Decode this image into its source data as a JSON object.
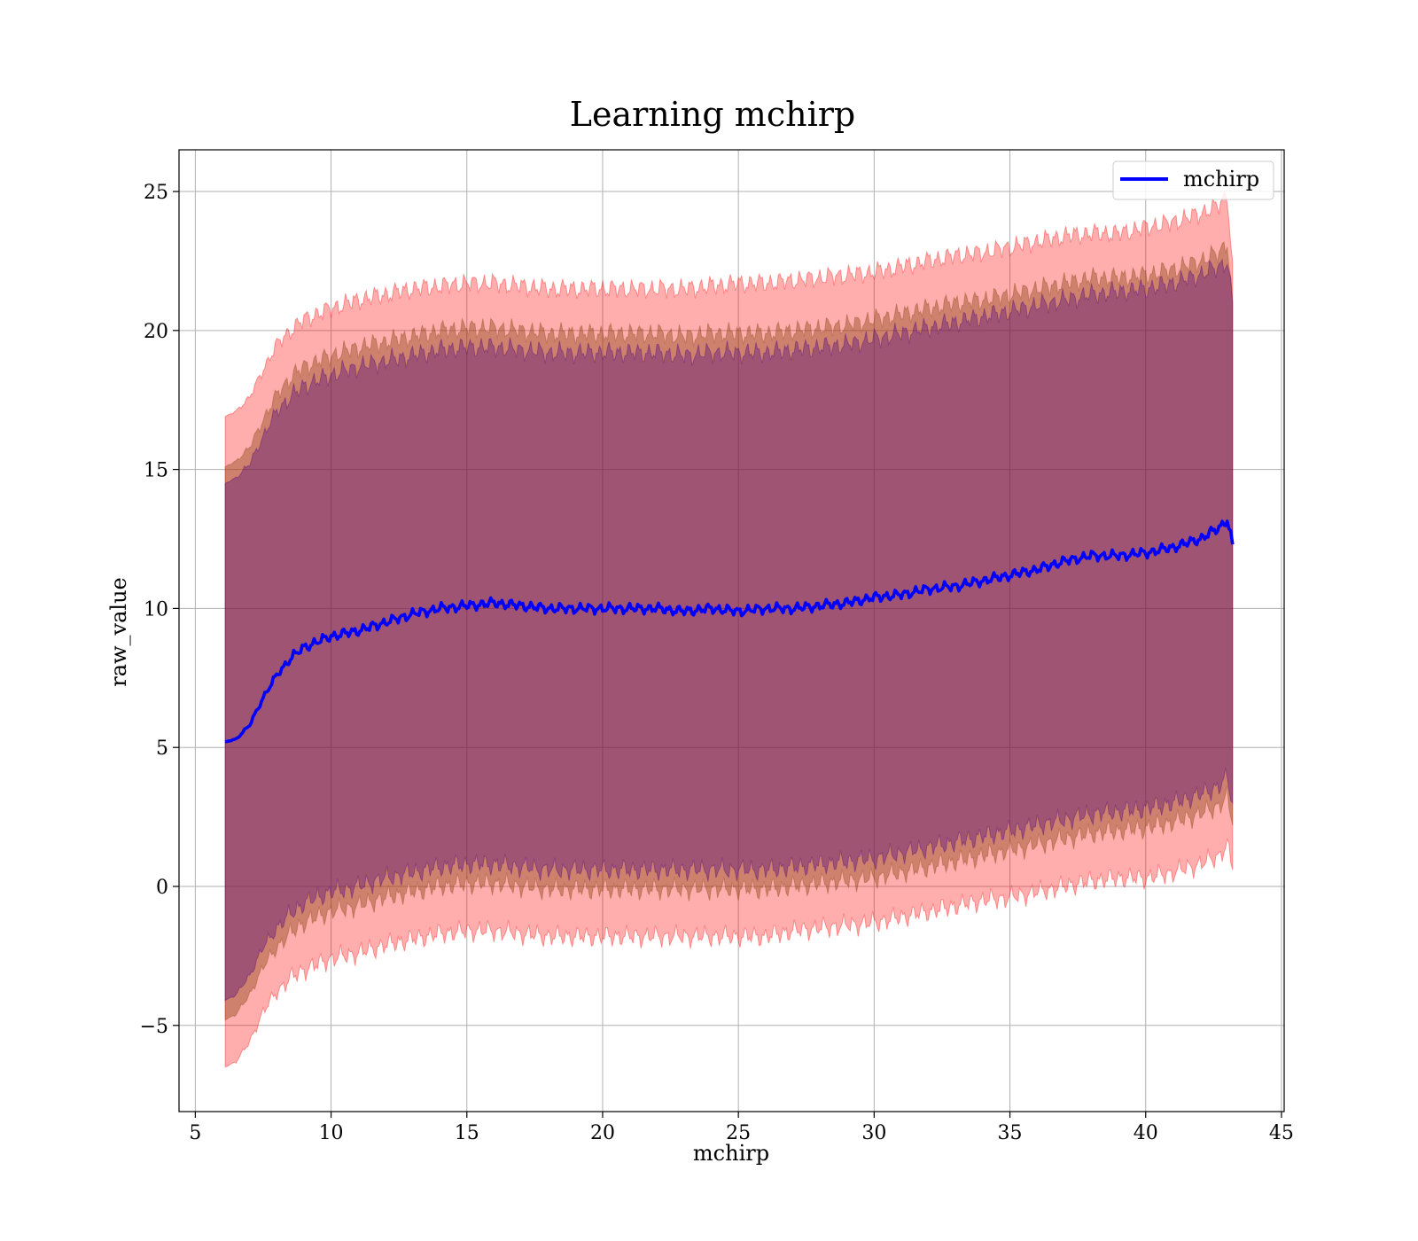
{
  "chart_data": {
    "type": "line",
    "title": "Learning mchirp",
    "xlabel": "mchirp",
    "ylabel": "raw_value",
    "xlim": [
      4.4,
      45.1
    ],
    "ylim": [
      -8.1,
      26.5
    ],
    "xticks": [
      5,
      10,
      15,
      20,
      25,
      30,
      35,
      40,
      45
    ],
    "xtick_labels": [
      "5",
      "10",
      "15",
      "20",
      "25",
      "30",
      "35",
      "40",
      "45"
    ],
    "yticks": [
      -5,
      0,
      5,
      10,
      15,
      20,
      25
    ],
    "ytick_labels": [
      "−5",
      "0",
      "5",
      "10",
      "15",
      "20",
      "25"
    ],
    "grid": true,
    "legend": {
      "position": "upper right",
      "entries": [
        "mchirp"
      ]
    },
    "colors": {
      "line": "#0000ff",
      "band_outer": "#ff0000",
      "band_middle": "#8b4513",
      "band_inner": "#4b0082"
    },
    "series": [
      {
        "name": "mchirp",
        "x": [
          6.1,
          6.5,
          7.0,
          7.5,
          8.0,
          8.5,
          9.0,
          9.5,
          10.0,
          11.0,
          12.0,
          13.0,
          14.0,
          15.0,
          16.0,
          17.0,
          18.0,
          19.0,
          20.0,
          21.0,
          22.0,
          23.0,
          24.0,
          25.0,
          26.0,
          27.0,
          28.0,
          29.0,
          30.0,
          31.0,
          32.0,
          33.0,
          34.0,
          35.0,
          36.0,
          37.0,
          38.0,
          39.0,
          40.0,
          41.0,
          42.0,
          42.7,
          43.0,
          43.2
        ],
        "y": [
          5.2,
          5.3,
          5.8,
          6.8,
          7.6,
          8.2,
          8.6,
          8.8,
          9.0,
          9.2,
          9.5,
          9.8,
          10.0,
          10.1,
          10.2,
          10.1,
          10.0,
          10.0,
          10.0,
          10.0,
          10.0,
          9.9,
          10.0,
          9.9,
          10.0,
          10.0,
          10.1,
          10.2,
          10.4,
          10.5,
          10.7,
          10.8,
          11.0,
          11.2,
          11.4,
          11.7,
          11.9,
          11.9,
          12.0,
          12.2,
          12.5,
          12.9,
          13.2,
          12.3
        ]
      }
    ],
    "bands": [
      {
        "name": "outer",
        "upper": [
          16.9,
          17.1,
          17.6,
          18.6,
          19.5,
          20.0,
          20.4,
          20.6,
          20.8,
          21.1,
          21.3,
          21.5,
          21.6,
          21.7,
          21.7,
          21.6,
          21.5,
          21.5,
          21.5,
          21.5,
          21.5,
          21.5,
          21.6,
          21.7,
          21.7,
          21.8,
          21.9,
          22.0,
          22.1,
          22.3,
          22.5,
          22.7,
          22.8,
          23.0,
          23.2,
          23.4,
          23.5,
          23.5,
          23.7,
          23.9,
          24.2,
          24.5,
          24.9,
          22.5
        ],
        "lower": [
          -6.5,
          -6.3,
          -5.6,
          -4.5,
          -3.8,
          -3.3,
          -3.0,
          -2.8,
          -2.6,
          -2.4,
          -2.1,
          -1.9,
          -1.7,
          -1.6,
          -1.6,
          -1.7,
          -1.8,
          -1.8,
          -1.8,
          -1.8,
          -1.8,
          -1.8,
          -1.8,
          -1.8,
          -1.8,
          -1.6,
          -1.5,
          -1.4,
          -1.3,
          -1.1,
          -0.9,
          -0.7,
          -0.5,
          -0.4,
          -0.2,
          0.0,
          0.2,
          0.3,
          0.3,
          0.5,
          0.8,
          1.1,
          1.5,
          0.6
        ]
      },
      {
        "name": "middle",
        "upper": [
          15.1,
          15.3,
          15.8,
          16.8,
          17.7,
          18.3,
          18.7,
          18.9,
          19.1,
          19.4,
          19.6,
          19.8,
          20.0,
          20.1,
          20.1,
          20.0,
          19.9,
          19.9,
          19.9,
          19.9,
          19.9,
          19.8,
          19.9,
          19.9,
          19.9,
          20.0,
          20.1,
          20.2,
          20.4,
          20.6,
          20.8,
          21.0,
          21.1,
          21.3,
          21.5,
          21.7,
          21.9,
          21.9,
          22.0,
          22.2,
          22.5,
          22.8,
          23.2,
          21.0
        ],
        "lower": [
          -4.8,
          -4.6,
          -3.9,
          -2.9,
          -2.2,
          -1.7,
          -1.3,
          -1.1,
          -0.9,
          -0.7,
          -0.4,
          -0.2,
          0.0,
          0.1,
          0.1,
          0.0,
          -0.1,
          -0.1,
          -0.1,
          -0.1,
          -0.1,
          -0.1,
          -0.1,
          -0.1,
          -0.1,
          0.0,
          0.1,
          0.2,
          0.3,
          0.5,
          0.7,
          0.9,
          1.1,
          1.3,
          1.5,
          1.7,
          1.9,
          2.0,
          2.1,
          2.3,
          2.6,
          2.9,
          3.2,
          2.2
        ]
      },
      {
        "name": "inner",
        "upper": [
          14.5,
          14.7,
          15.2,
          16.2,
          17.1,
          17.6,
          18.0,
          18.2,
          18.4,
          18.7,
          18.9,
          19.1,
          19.3,
          19.4,
          19.4,
          19.3,
          19.2,
          19.2,
          19.2,
          19.2,
          19.2,
          19.1,
          19.2,
          19.2,
          19.2,
          19.3,
          19.4,
          19.5,
          19.7,
          19.9,
          20.1,
          20.3,
          20.5,
          20.7,
          20.9,
          21.1,
          21.3,
          21.4,
          21.5,
          21.7,
          22.0,
          22.3,
          22.5,
          21.0
        ],
        "lower": [
          -4.1,
          -3.9,
          -3.2,
          -2.2,
          -1.5,
          -1.0,
          -0.6,
          -0.4,
          -0.2,
          0.0,
          0.3,
          0.5,
          0.7,
          0.8,
          0.8,
          0.7,
          0.6,
          0.6,
          0.6,
          0.6,
          0.6,
          0.6,
          0.6,
          0.6,
          0.6,
          0.7,
          0.8,
          0.9,
          1.0,
          1.2,
          1.4,
          1.6,
          1.8,
          2.0,
          2.2,
          2.4,
          2.6,
          2.7,
          2.8,
          3.0,
          3.3,
          3.6,
          3.9,
          3.0
        ]
      }
    ]
  }
}
